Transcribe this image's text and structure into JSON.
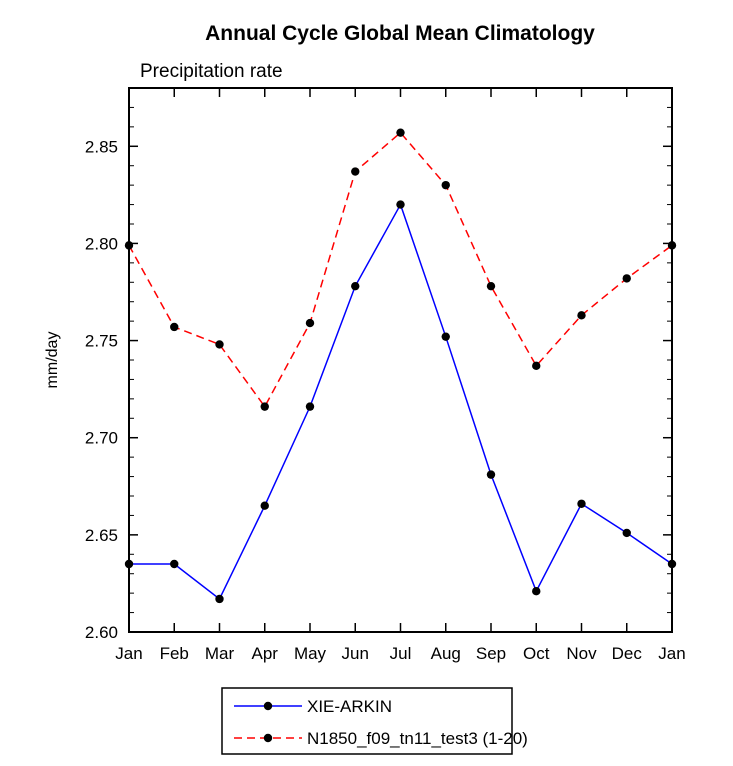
{
  "title": "Annual Cycle Global Mean Climatology",
  "chart_data": {
    "type": "line",
    "title": "Annual Cycle Global Mean Climatology",
    "subtitle": "Precipitation rate",
    "xlabel": "",
    "ylabel": "mm/day",
    "categories": [
      "Jan",
      "Feb",
      "Mar",
      "Apr",
      "May",
      "Jun",
      "Jul",
      "Aug",
      "Sep",
      "Oct",
      "Nov",
      "Dec",
      "Jan"
    ],
    "ylim": [
      2.6,
      2.88
    ],
    "yticks": [
      2.6,
      2.65,
      2.7,
      2.75,
      2.8,
      2.85
    ],
    "ytick_labels": [
      "2.60",
      "2.65",
      "2.70",
      "2.75",
      "2.80",
      "2.85"
    ],
    "minor_tick_step": 0.01,
    "grid": false,
    "legend_position": "bottom",
    "axis_color": "#000000",
    "marker_shape": "filled-circle",
    "series": [
      {
        "name": "XIE-ARKIN",
        "color": "#0000ff",
        "style": "solid",
        "marker_color": "#000000",
        "values": [
          2.635,
          2.635,
          2.617,
          2.665,
          2.716,
          2.778,
          2.82,
          2.752,
          2.681,
          2.621,
          2.666,
          2.651,
          2.635
        ]
      },
      {
        "name": "N1850_f09_tn11_test3 (1-20)",
        "color": "#ff0000",
        "style": "dashed",
        "marker_color": "#000000",
        "values": [
          2.799,
          2.757,
          2.748,
          2.716,
          2.759,
          2.837,
          2.857,
          2.83,
          2.778,
          2.737,
          2.763,
          2.782,
          2.799
        ]
      }
    ]
  }
}
